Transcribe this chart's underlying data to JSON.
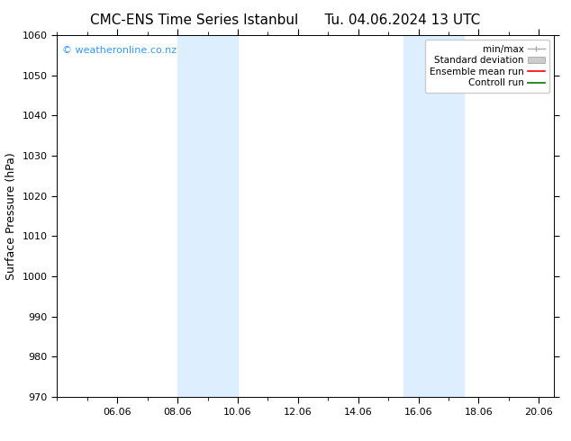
{
  "title_left": "CMC-ENS Time Series Istanbul",
  "title_right": "Tu. 04.06.2024 13 UTC",
  "ylabel": "Surface Pressure (hPa)",
  "ylim": [
    970,
    1060
  ],
  "yticks": [
    970,
    980,
    990,
    1000,
    1010,
    1020,
    1030,
    1040,
    1050,
    1060
  ],
  "xlim_start": 4.0,
  "xlim_end": 20.5,
  "xtick_labels": [
    "06.06",
    "08.06",
    "10.06",
    "12.06",
    "14.06",
    "16.06",
    "18.06",
    "20.06"
  ],
  "xtick_positions": [
    6,
    8,
    10,
    12,
    14,
    16,
    18,
    20
  ],
  "shaded_bands": [
    {
      "x_start": 8.0,
      "x_end": 10.0
    },
    {
      "x_start": 15.5,
      "x_end": 17.5
    }
  ],
  "shade_color": "#ddeeff",
  "background_color": "#ffffff",
  "watermark_text": "© weatheronline.co.nz",
  "watermark_color": "#3399ff",
  "legend_items": [
    {
      "label": "min/max",
      "color": "#aaaaaa",
      "type": "errorbar"
    },
    {
      "label": "Standard deviation",
      "color": "#cccccc",
      "type": "band"
    },
    {
      "label": "Ensemble mean run",
      "color": "#ff0000",
      "type": "line"
    },
    {
      "label": "Controll run",
      "color": "#007700",
      "type": "line"
    }
  ],
  "title_fontsize": 11,
  "axis_fontsize": 9,
  "tick_fontsize": 8,
  "watermark_fontsize": 8,
  "legend_fontsize": 7.5
}
